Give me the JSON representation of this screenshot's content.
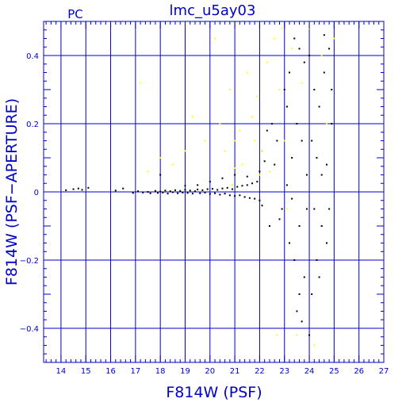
{
  "chart_data": {
    "type": "scatter",
    "title": "lmc_u5ay03",
    "corner_label": "PC",
    "xlabel": "F814W (PSF)",
    "ylabel": "F814W (PSF−APERTURE)",
    "xlim": [
      13.3,
      27
    ],
    "ylim": [
      -0.5,
      0.5
    ],
    "x_ticks": [
      14,
      15,
      16,
      17,
      18,
      19,
      20,
      21,
      22,
      23,
      24,
      25,
      26,
      27
    ],
    "y_ticks": [
      -0.4,
      -0.2,
      0,
      0.2,
      0.4
    ],
    "x_tick_labels": [
      "14",
      "15",
      "16",
      "17",
      "18",
      "19",
      "20",
      "21",
      "22",
      "23",
      "24",
      "25",
      "26",
      "27"
    ],
    "y_tick_labels": [
      "−0.4",
      "−0.2",
      "0",
      "0.2",
      "0.4"
    ],
    "grid": true,
    "colors": {
      "axes": "#0000cc",
      "grid": "#0000cc"
    },
    "series": [
      {
        "color": "#000000",
        "points": [
          [
            14.2,
            0.005
          ],
          [
            14.5,
            0.008
          ],
          [
            14.7,
            0.01
          ],
          [
            14.85,
            0.006
          ],
          [
            15.1,
            0.012
          ],
          [
            16.2,
            0.004
          ],
          [
            16.5,
            0.01
          ],
          [
            16.9,
            -0.003
          ],
          [
            17.1,
            0.002
          ],
          [
            17.3,
            -0.002
          ],
          [
            17.5,
            0.0
          ],
          [
            17.6,
            -0.004
          ],
          [
            17.8,
            0.003
          ],
          [
            17.9,
            -0.003
          ],
          [
            18.0,
            0.001
          ],
          [
            18.1,
            -0.002
          ],
          [
            18.2,
            0.004
          ],
          [
            18.3,
            -0.005
          ],
          [
            18.4,
            0.002
          ],
          [
            18.5,
            -0.001
          ],
          [
            18.6,
            0.005
          ],
          [
            18.7,
            -0.004
          ],
          [
            18.8,
            0.003
          ],
          [
            18.9,
            -0.002
          ],
          [
            19.0,
            0.006
          ],
          [
            19.1,
            -0.003
          ],
          [
            19.2,
            0.004
          ],
          [
            19.3,
            -0.005
          ],
          [
            19.4,
            0.002
          ],
          [
            19.5,
            0.007
          ],
          [
            19.6,
            -0.004
          ],
          [
            19.7,
            0.005
          ],
          [
            19.8,
            -0.002
          ],
          [
            19.9,
            0.008
          ],
          [
            20.0,
            -0.006
          ],
          [
            20.1,
            0.009
          ],
          [
            20.2,
            -0.004
          ],
          [
            20.3,
            0.006
          ],
          [
            20.4,
            -0.008
          ],
          [
            20.5,
            0.01
          ],
          [
            20.6,
            -0.005
          ],
          [
            20.7,
            0.012
          ],
          [
            20.8,
            -0.01
          ],
          [
            20.9,
            0.008
          ],
          [
            21.0,
            -0.012
          ],
          [
            21.1,
            0.015
          ],
          [
            21.2,
            -0.01
          ],
          [
            21.3,
            0.018
          ],
          [
            21.4,
            -0.015
          ],
          [
            21.5,
            0.02
          ],
          [
            21.6,
            -0.018
          ],
          [
            21.7,
            0.025
          ],
          [
            21.8,
            -0.02
          ],
          [
            21.9,
            0.03
          ],
          [
            22.0,
            -0.025
          ],
          [
            18.0,
            0.05
          ],
          [
            19.0,
            0.018
          ],
          [
            19.5,
            0.02
          ],
          [
            20.0,
            0.03
          ],
          [
            20.5,
            0.04
          ],
          [
            21.0,
            0.05
          ],
          [
            21.5,
            0.045
          ],
          [
            22.0,
            0.06
          ],
          [
            22.1,
            0.12
          ],
          [
            22.3,
            0.18
          ],
          [
            22.5,
            0.2
          ],
          [
            22.6,
            0.08
          ],
          [
            22.7,
            0.15
          ],
          [
            22.8,
            -0.08
          ],
          [
            22.9,
            -0.05
          ],
          [
            22.4,
            -0.1
          ],
          [
            22.2,
            0.09
          ],
          [
            22.1,
            -0.04
          ],
          [
            23.0,
            0.3
          ],
          [
            23.1,
            0.25
          ],
          [
            23.2,
            -0.15
          ],
          [
            23.3,
            0.1
          ],
          [
            23.4,
            -0.2
          ],
          [
            23.5,
            0.2
          ],
          [
            23.6,
            -0.1
          ],
          [
            23.7,
            0.15
          ],
          [
            23.8,
            -0.25
          ],
          [
            23.9,
            0.05
          ],
          [
            23.2,
            0.35
          ],
          [
            23.4,
            0.45
          ],
          [
            23.6,
            -0.3
          ],
          [
            23.8,
            0.38
          ],
          [
            23.5,
            -0.35
          ],
          [
            23.6,
            0.42
          ],
          [
            23.7,
            -0.38
          ],
          [
            23.1,
            0.02
          ],
          [
            23.3,
            -0.02
          ],
          [
            23.9,
            -0.05
          ],
          [
            24.0,
            0.4
          ],
          [
            24.1,
            -0.3
          ],
          [
            24.2,
            0.3
          ],
          [
            24.3,
            -0.2
          ],
          [
            24.4,
            0.25
          ],
          [
            24.5,
            -0.1
          ],
          [
            24.6,
            0.35
          ],
          [
            24.7,
            -0.15
          ],
          [
            24.8,
            0.42
          ],
          [
            24.9,
            0.2
          ],
          [
            24.0,
            -0.42
          ],
          [
            24.3,
            0.1
          ],
          [
            24.5,
            0.05
          ],
          [
            24.2,
            -0.05
          ],
          [
            24.7,
            0.08
          ],
          [
            24.6,
            0.46
          ],
          [
            24.4,
            -0.25
          ],
          [
            24.1,
            0.15
          ],
          [
            24.8,
            -0.05
          ],
          [
            24.9,
            0.3
          ]
        ]
      },
      {
        "color": "#ffff00",
        "points": [
          [
            17.2,
            0.32
          ],
          [
            17.5,
            0.06
          ],
          [
            18.0,
            0.1
          ],
          [
            18.5,
            0.08
          ],
          [
            19.0,
            0.12
          ],
          [
            19.3,
            0.22
          ],
          [
            19.8,
            0.15
          ],
          [
            20.2,
            0.45
          ],
          [
            20.4,
            0.2
          ],
          [
            20.6,
            0.12
          ],
          [
            20.8,
            0.3
          ],
          [
            21.0,
            0.15
          ],
          [
            21.2,
            0.18
          ],
          [
            21.3,
            0.08
          ],
          [
            21.5,
            0.35
          ],
          [
            21.7,
            0.22
          ],
          [
            21.9,
            0.28
          ],
          [
            22.0,
            0.05
          ],
          [
            22.1,
            0.12
          ],
          [
            22.3,
            0.38
          ],
          [
            22.4,
            0.06
          ],
          [
            22.6,
            0.45
          ],
          [
            22.8,
            0.3
          ],
          [
            22.9,
            0.48
          ],
          [
            23.0,
            0.15
          ],
          [
            23.1,
            -0.05
          ],
          [
            23.3,
            0.42
          ],
          [
            23.5,
            -0.42
          ],
          [
            23.7,
            0.32
          ],
          [
            24.0,
            0.48
          ],
          [
            24.2,
            -0.45
          ],
          [
            24.5,
            0.4
          ],
          [
            24.7,
            0.2
          ],
          [
            25.0,
            0.45
          ],
          [
            22.7,
            -0.42
          ],
          [
            21.0,
            0.07
          ],
          [
            20.9,
            0.02
          ],
          [
            21.8,
            0.15
          ]
        ]
      }
    ]
  }
}
